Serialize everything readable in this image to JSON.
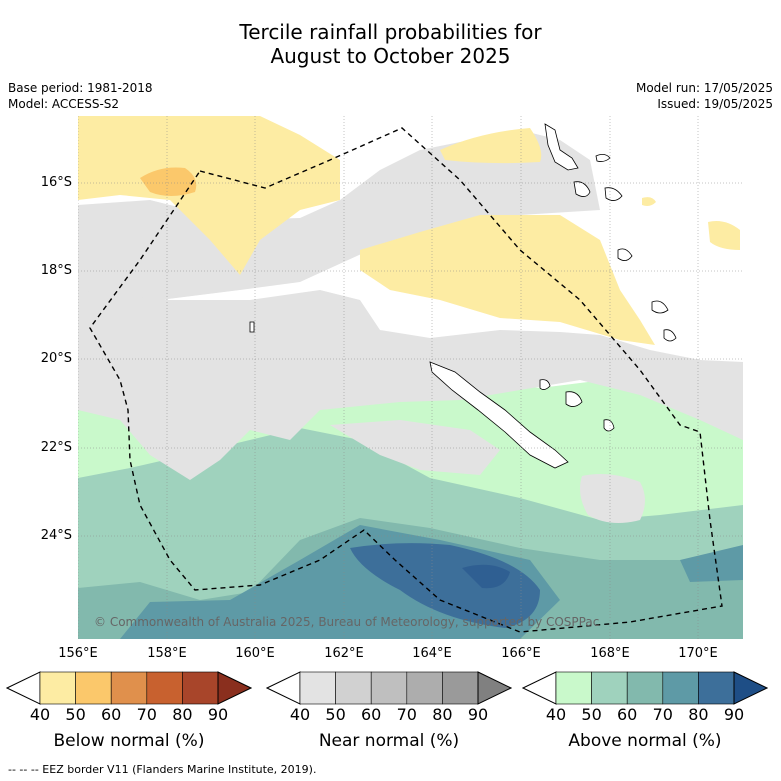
{
  "header": {
    "title_line1": "Tercile rainfall probabilities for",
    "title_line2": "August to October 2025",
    "base_period": "Base period: 1981-2018",
    "model": "Model: ACCESS-S2",
    "model_run": "Model run: 17/05/2025",
    "issued": "Issued: 19/05/2025"
  },
  "map": {
    "lat_labels": [
      "16°S",
      "18°S",
      "20°S",
      "22°S",
      "24°S"
    ],
    "lon_labels": [
      "156°E",
      "158°E",
      "160°E",
      "162°E",
      "164°E",
      "166°E",
      "168°E",
      "170°E"
    ],
    "copyright": "© Commonwealth of Australia 2025, Bureau of Meteorology, supported by COSPPac",
    "colors": {
      "ocean_normal": "#ffffff",
      "near_normal": "#e3e3e3",
      "below_40": "#fdeca3",
      "below_50": "#fbc86b",
      "above_40": "#c9f9cb",
      "above_50": "#9fd2bd",
      "above_60": "#82b9ad",
      "above_70": "#5e9aa6",
      "above_80": "#3d6f9a"
    }
  },
  "colorbars": [
    {
      "title": "Below normal (%)",
      "ticks": [
        "40",
        "50",
        "60",
        "70",
        "80",
        "90"
      ],
      "colors": [
        "#ffffff",
        "#fdeca3",
        "#fbc86b",
        "#e0904c",
        "#c8612f",
        "#a8452a",
        "#8a2f1e"
      ]
    },
    {
      "title": "Near normal (%)",
      "ticks": [
        "40",
        "50",
        "60",
        "70",
        "80",
        "90"
      ],
      "colors": [
        "#ffffff",
        "#e3e3e3",
        "#d1d1d1",
        "#bfbfbf",
        "#adadad",
        "#9a9a9a",
        "#808080"
      ]
    },
    {
      "title": "Above normal (%)",
      "ticks": [
        "40",
        "50",
        "60",
        "70",
        "80",
        "90"
      ],
      "colors": [
        "#ffffff",
        "#c9f9cb",
        "#9fd2bd",
        "#82b9ad",
        "#5e9aa6",
        "#3d6f9a",
        "#1e4e86"
      ]
    }
  ],
  "footnote": "-- -- -- EEZ border V11 (Flanders Marine Institute, 2019)."
}
